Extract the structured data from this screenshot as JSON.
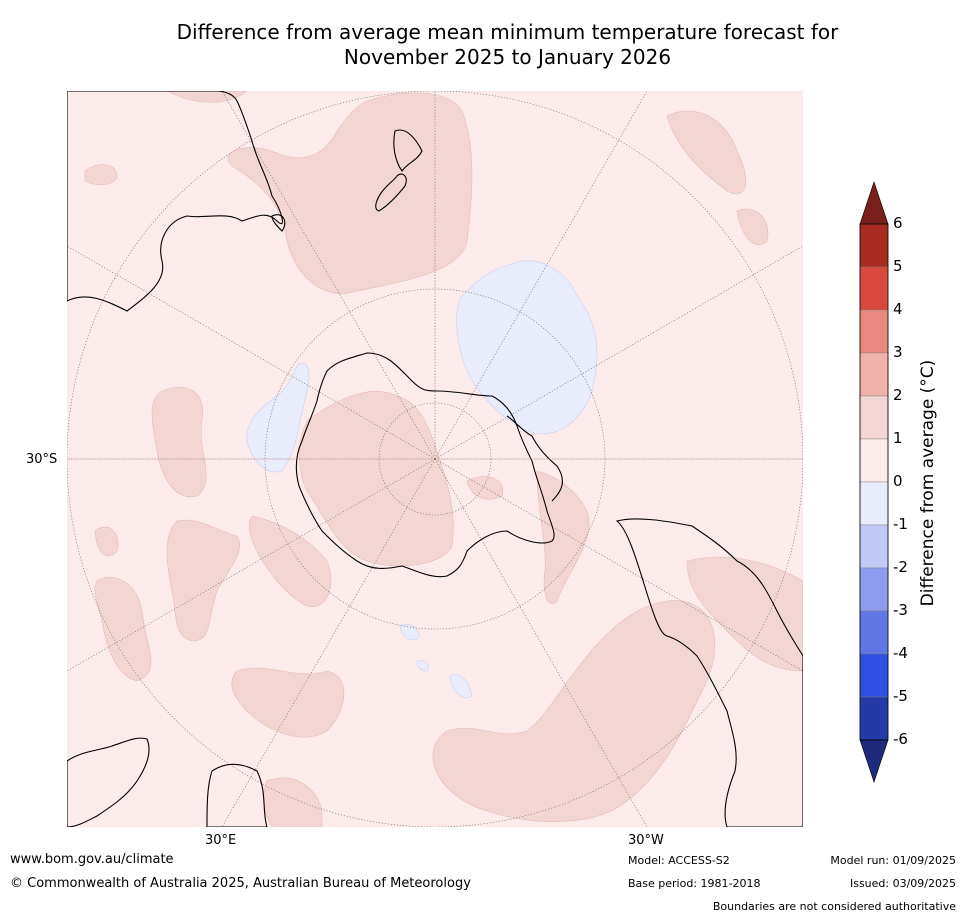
{
  "title": {
    "line1": "Difference from average mean minimum temperature forecast for",
    "line2": "November 2025 to January 2026"
  },
  "map": {
    "projection": "south-polar-stereographic",
    "latitude_label": "30°S",
    "longitude_labels": [
      "30°E",
      "30°W"
    ],
    "land_color": "#000000",
    "fill_near_average": "#fbeceb",
    "fill_warm_1_2": "#f3d6d3",
    "fill_cool_0_minus1": "#e9ecfb"
  },
  "colorbar": {
    "label": "Difference from average (°C)",
    "ticks": [
      "6",
      "5",
      "4",
      "3",
      "2",
      "1",
      "0",
      "-1",
      "-2",
      "-3",
      "-4",
      "-5",
      "-6"
    ],
    "bins": [
      {
        "range": ">6",
        "color": "#7b1f1a"
      },
      {
        "range": "5 to 6",
        "color": "#a82b22"
      },
      {
        "range": "4 to 5",
        "color": "#d9483c"
      },
      {
        "range": "3 to 4",
        "color": "#e88a80"
      },
      {
        "range": "2 to 3",
        "color": "#efb3ac"
      },
      {
        "range": "1 to 2",
        "color": "#f3d6d3"
      },
      {
        "range": "0 to 1",
        "color": "#fbeceb"
      },
      {
        "range": "-1 to 0",
        "color": "#e9ecfb"
      },
      {
        "range": "-2 to -1",
        "color": "#c2c9f4"
      },
      {
        "range": "-3 to -2",
        "color": "#8e9bee"
      },
      {
        "range": "-4 to -3",
        "color": "#6177e6"
      },
      {
        "range": "-5 to -4",
        "color": "#2f4fe0"
      },
      {
        "range": "-6 to -5",
        "color": "#243aa8"
      },
      {
        "range": "<-6",
        "color": "#1e2a7e"
      }
    ]
  },
  "footer": {
    "website": "www.bom.gov.au/climate",
    "copyright": "© Commonwealth of Australia 2025, Australian Bureau of Meteorology",
    "model": "Model: ACCESS-S2",
    "base_period": "Base period: 1981-2018",
    "model_run": "Model run: 01/09/2025",
    "issued": "Issued: 03/09/2025",
    "disclaimer": "Boundaries are not considered authoritative"
  }
}
